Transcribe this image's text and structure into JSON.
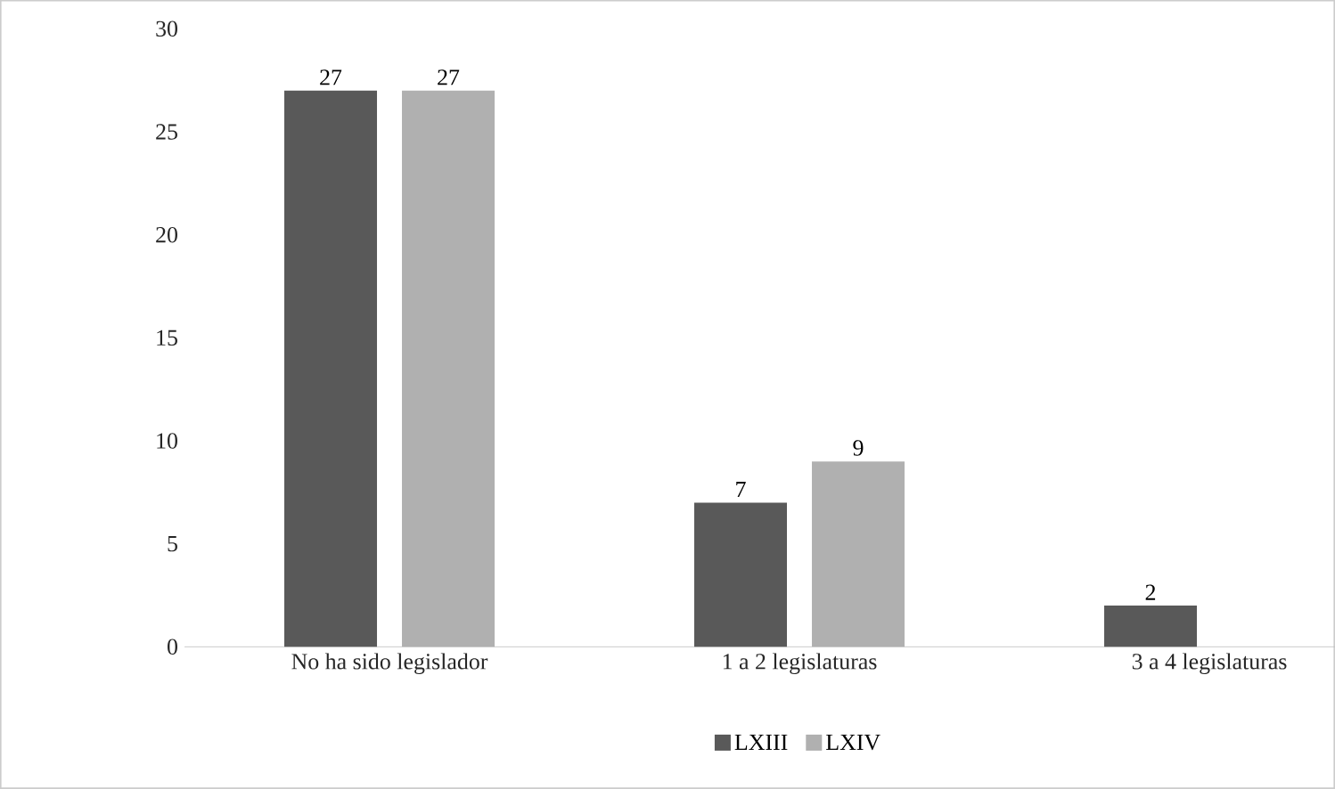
{
  "chart_data": {
    "type": "bar",
    "categories": [
      "No ha sido legislador",
      "1 a 2 legislaturas",
      "3 a 4 legislaturas"
    ],
    "series": [
      {
        "name": "LXIII",
        "color": "#595959",
        "values": [
          27,
          7,
          2
        ]
      },
      {
        "name": "LXIV",
        "color": "#b0b0b0",
        "values": [
          27,
          9,
          null
        ]
      }
    ],
    "ylim": [
      0,
      30
    ],
    "yticks": [
      0,
      5,
      10,
      15,
      20,
      25,
      30
    ],
    "data_labels": true,
    "legend": "bottom"
  }
}
